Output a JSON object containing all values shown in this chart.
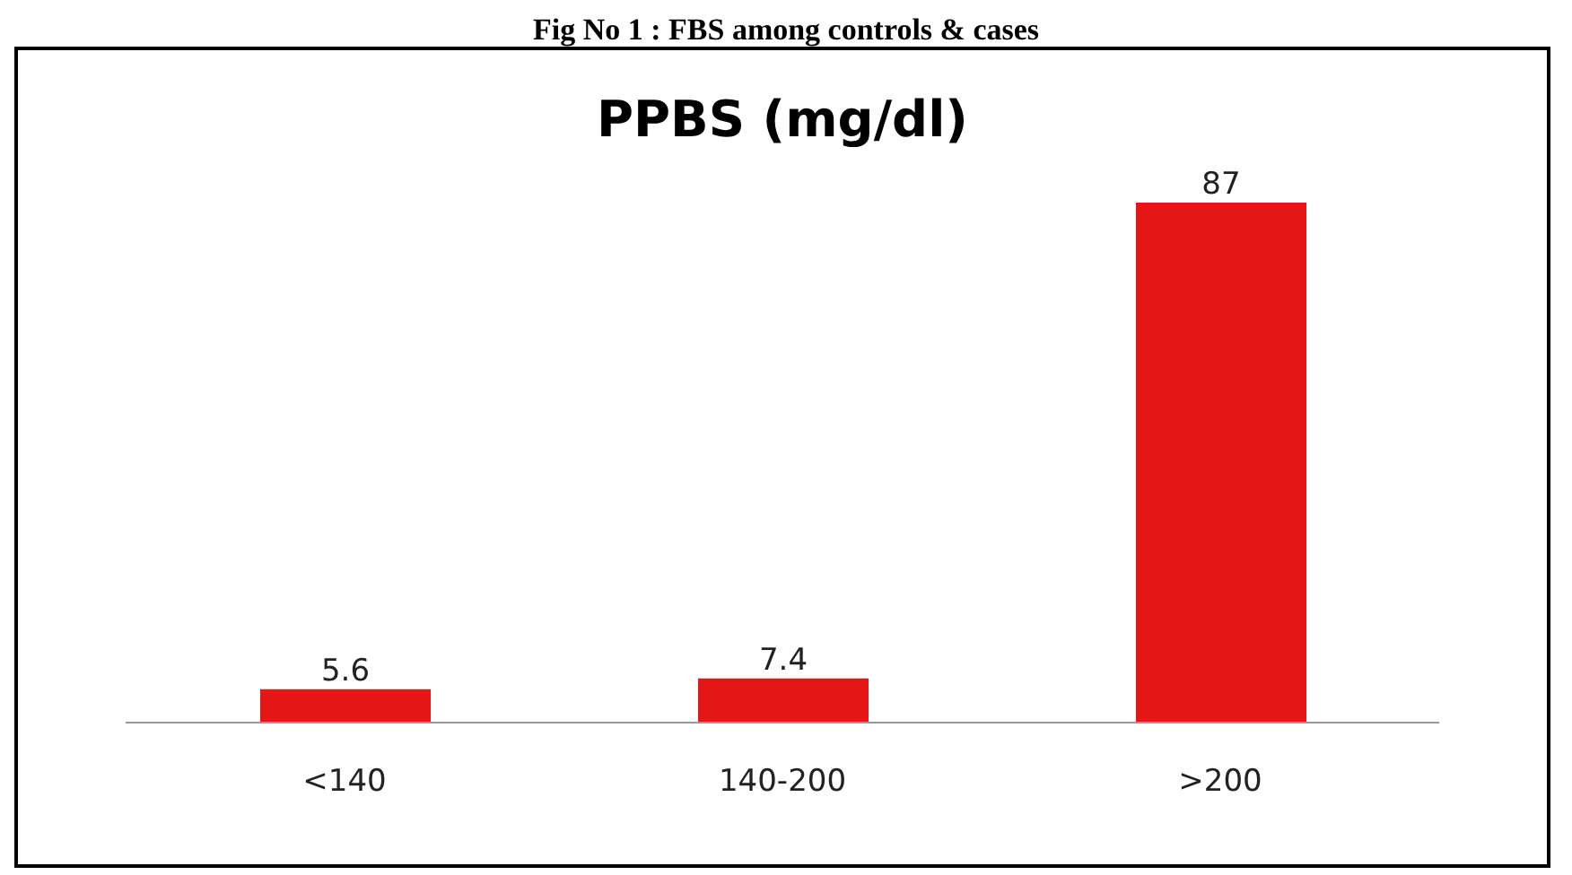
{
  "chart_data": {
    "type": "bar",
    "title": "PPBS (mg/dl)",
    "annotations": [
      "Fig No 1 : FBS among controls & cases"
    ],
    "categories": [
      "<140",
      "140-200",
      ">200"
    ],
    "values": [
      5.6,
      7.4,
      87
    ],
    "color": "#e41616",
    "data_labels": true,
    "tick_labels": "x",
    "grid": false,
    "legend": false
  }
}
